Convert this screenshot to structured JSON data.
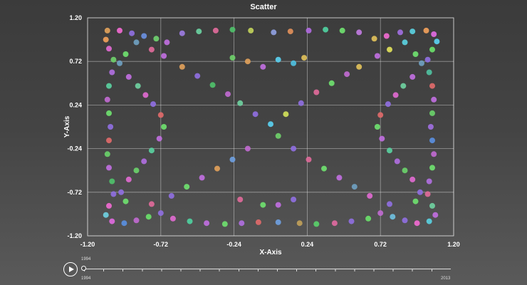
{
  "chart_data": {
    "type": "scatter",
    "title": "Scatter",
    "xlabel": "X-Axis",
    "ylabel": "Y-Axis",
    "xlim": [
      -1.2,
      1.2
    ],
    "ylim": [
      -1.2,
      1.2
    ],
    "xticks": [
      "-1.20",
      "-0.72",
      "-0.24",
      "0.24",
      "0.72",
      "1.20"
    ],
    "yticks": [
      "1.20",
      "0.72",
      "0.24",
      "-0.24",
      "-0.72",
      "-1.20"
    ],
    "grid": true,
    "curve": "x = sin(t)·(1 + 0.32·cos(2t)^2), y = cos(t)·(1 + 0.32·sin(2t)^2) outer loop plus x = y = ±0.92·sin(t)·|sin(t)| diagonals",
    "points": [
      {
        "x": -1.07,
        "y": 1.06,
        "color": "#e0a15a"
      },
      {
        "x": -0.99,
        "y": 1.06,
        "color": "#f06ad0"
      },
      {
        "x": -0.91,
        "y": 1.03,
        "color": "#8e6fe0"
      },
      {
        "x": -0.83,
        "y": 1.0,
        "color": "#6a8fe0"
      },
      {
        "x": -0.75,
        "y": 0.97,
        "color": "#6fd06f"
      },
      {
        "x": -0.68,
        "y": 0.93,
        "color": "#c06fe0"
      },
      {
        "x": -0.58,
        "y": 1.03,
        "color": "#9b7be0"
      },
      {
        "x": -0.47,
        "y": 1.05,
        "color": "#6ad0a0"
      },
      {
        "x": -0.36,
        "y": 1.06,
        "color": "#e06a9a"
      },
      {
        "x": -0.25,
        "y": 1.07,
        "color": "#4fc06a"
      },
      {
        "x": -0.13,
        "y": 1.06,
        "color": "#c0d05a"
      },
      {
        "x": 0.02,
        "y": 1.04,
        "color": "#8fa0e0"
      },
      {
        "x": 0.13,
        "y": 1.05,
        "color": "#e08f5a"
      },
      {
        "x": 0.25,
        "y": 1.06,
        "color": "#b06ae0"
      },
      {
        "x": 0.36,
        "y": 1.07,
        "color": "#4fd0a0"
      },
      {
        "x": 0.47,
        "y": 1.06,
        "color": "#6fe06f"
      },
      {
        "x": 0.58,
        "y": 1.04,
        "color": "#c07be0"
      },
      {
        "x": 0.68,
        "y": 0.97,
        "color": "#e0c05a"
      },
      {
        "x": 0.76,
        "y": 1.0,
        "color": "#f06ad0"
      },
      {
        "x": 0.85,
        "y": 1.04,
        "color": "#a06fe0"
      },
      {
        "x": 0.93,
        "y": 1.05,
        "color": "#5ad0e0"
      },
      {
        "x": 1.02,
        "y": 1.06,
        "color": "#f0a05a"
      },
      {
        "x": 1.07,
        "y": 1.02,
        "color": "#e06ae0"
      },
      {
        "x": 1.09,
        "y": 0.94,
        "color": "#5ad0f0"
      },
      {
        "x": 1.06,
        "y": 0.85,
        "color": "#6ae06a"
      },
      {
        "x": 1.03,
        "y": 0.74,
        "color": "#8f6fe0"
      },
      {
        "x": 1.04,
        "y": 0.6,
        "color": "#4fc0a0"
      },
      {
        "x": 1.06,
        "y": 0.45,
        "color": "#e06a6a"
      },
      {
        "x": 1.07,
        "y": 0.3,
        "color": "#c06fe0"
      },
      {
        "x": 1.06,
        "y": 0.15,
        "color": "#6ad06a"
      },
      {
        "x": 1.05,
        "y": 0.0,
        "color": "#a06fe0"
      },
      {
        "x": 1.06,
        "y": -0.15,
        "color": "#5a8fe0"
      },
      {
        "x": 1.07,
        "y": -0.3,
        "color": "#c06ad0"
      },
      {
        "x": 1.06,
        "y": -0.45,
        "color": "#6fe06f"
      },
      {
        "x": 1.04,
        "y": -0.6,
        "color": "#b06fe0"
      },
      {
        "x": 1.03,
        "y": -0.74,
        "color": "#e06a9a"
      },
      {
        "x": 1.06,
        "y": -0.87,
        "color": "#6fd0a0"
      },
      {
        "x": 1.08,
        "y": -0.97,
        "color": "#c06fe0"
      },
      {
        "x": 1.04,
        "y": -1.04,
        "color": "#5ad0e0"
      },
      {
        "x": 0.96,
        "y": -1.06,
        "color": "#f06ad0"
      },
      {
        "x": 0.88,
        "y": -1.03,
        "color": "#8f6fe0"
      },
      {
        "x": 0.8,
        "y": -0.99,
        "color": "#6fc0e0"
      },
      {
        "x": 0.72,
        "y": -0.95,
        "color": "#c06ad0"
      },
      {
        "x": 0.64,
        "y": -1.01,
        "color": "#6ae06a"
      },
      {
        "x": 0.53,
        "y": -1.04,
        "color": "#8f6fe0"
      },
      {
        "x": 0.42,
        "y": -1.06,
        "color": "#e06aa0"
      },
      {
        "x": 0.3,
        "y": -1.07,
        "color": "#5ad06a"
      },
      {
        "x": 0.19,
        "y": -1.06,
        "color": "#c0a05a"
      },
      {
        "x": 0.05,
        "y": -1.05,
        "color": "#6fa0e0"
      },
      {
        "x": -0.08,
        "y": -1.05,
        "color": "#e06a6a"
      },
      {
        "x": -0.19,
        "y": -1.06,
        "color": "#b06fe0"
      },
      {
        "x": -0.3,
        "y": -1.07,
        "color": "#6fe06f"
      },
      {
        "x": -0.42,
        "y": -1.06,
        "color": "#c06fe0"
      },
      {
        "x": -0.53,
        "y": -1.04,
        "color": "#4fd0a0"
      },
      {
        "x": -0.64,
        "y": -1.01,
        "color": "#e06ad0"
      },
      {
        "x": -0.72,
        "y": -0.95,
        "color": "#8f6fe0"
      },
      {
        "x": -0.8,
        "y": -0.99,
        "color": "#6ae06a"
      },
      {
        "x": -0.88,
        "y": -1.03,
        "color": "#c06ad0"
      },
      {
        "x": -0.96,
        "y": -1.06,
        "color": "#5a8fe0"
      },
      {
        "x": -1.04,
        "y": -1.04,
        "color": "#e06ae0"
      },
      {
        "x": -1.08,
        "y": -0.97,
        "color": "#6fd0e0"
      },
      {
        "x": -1.06,
        "y": -0.87,
        "color": "#f06ad0"
      },
      {
        "x": -1.03,
        "y": -0.74,
        "color": "#8f6fe0"
      },
      {
        "x": -1.04,
        "y": -0.6,
        "color": "#4fc06a"
      },
      {
        "x": -1.06,
        "y": -0.45,
        "color": "#c06fe0"
      },
      {
        "x": -1.07,
        "y": -0.3,
        "color": "#6ad06a"
      },
      {
        "x": -1.06,
        "y": -0.15,
        "color": "#e06a6a"
      },
      {
        "x": -1.05,
        "y": 0.0,
        "color": "#8f6fe0"
      },
      {
        "x": -1.06,
        "y": 0.15,
        "color": "#6fe06f"
      },
      {
        "x": -1.07,
        "y": 0.3,
        "color": "#c06ad0"
      },
      {
        "x": -1.06,
        "y": 0.45,
        "color": "#5ad0a0"
      },
      {
        "x": -1.04,
        "y": 0.6,
        "color": "#b06fe0"
      },
      {
        "x": -1.03,
        "y": 0.74,
        "color": "#6fd06a"
      },
      {
        "x": -1.06,
        "y": 0.86,
        "color": "#e06ad0"
      },
      {
        "x": -1.08,
        "y": 0.96,
        "color": "#f0a05a"
      },
      {
        "x": -0.95,
        "y": 0.8,
        "color": "#6fe06f"
      },
      {
        "x": -0.99,
        "y": 0.7,
        "color": "#6fa0c0"
      },
      {
        "x": -0.93,
        "y": 0.55,
        "color": "#c06fe0"
      },
      {
        "x": -0.87,
        "y": 0.45,
        "color": "#6fd0a0"
      },
      {
        "x": -0.82,
        "y": 0.35,
        "color": "#e06ad0"
      },
      {
        "x": -0.77,
        "y": 0.25,
        "color": "#8f6fe0"
      },
      {
        "x": -0.72,
        "y": 0.13,
        "color": "#e06a6a"
      },
      {
        "x": -0.7,
        "y": 0.0,
        "color": "#6fe06f"
      },
      {
        "x": -0.73,
        "y": -0.13,
        "color": "#c06fe0"
      },
      {
        "x": -0.78,
        "y": -0.26,
        "color": "#5ad0a0"
      },
      {
        "x": -0.83,
        "y": -0.38,
        "color": "#b06fe0"
      },
      {
        "x": -0.88,
        "y": -0.48,
        "color": "#6ad06a"
      },
      {
        "x": -0.93,
        "y": -0.58,
        "color": "#e06ad0"
      },
      {
        "x": -0.98,
        "y": -0.72,
        "color": "#8f6fe0"
      },
      {
        "x": -0.95,
        "y": -0.82,
        "color": "#6fe06f"
      },
      {
        "x": 0.95,
        "y": 0.8,
        "color": "#6fe06f"
      },
      {
        "x": 0.99,
        "y": 0.7,
        "color": "#6fa0c0"
      },
      {
        "x": 0.93,
        "y": 0.55,
        "color": "#c06fe0"
      },
      {
        "x": 0.87,
        "y": 0.45,
        "color": "#6fd0a0"
      },
      {
        "x": 0.82,
        "y": 0.35,
        "color": "#e06ad0"
      },
      {
        "x": 0.77,
        "y": 0.25,
        "color": "#8f6fe0"
      },
      {
        "x": 0.72,
        "y": 0.13,
        "color": "#e06a6a"
      },
      {
        "x": 0.7,
        "y": 0.0,
        "color": "#6fe06f"
      },
      {
        "x": 0.73,
        "y": -0.13,
        "color": "#c06fe0"
      },
      {
        "x": 0.78,
        "y": -0.26,
        "color": "#5ad0a0"
      },
      {
        "x": 0.83,
        "y": -0.38,
        "color": "#b06fe0"
      },
      {
        "x": 0.88,
        "y": -0.48,
        "color": "#6ad06a"
      },
      {
        "x": 0.93,
        "y": -0.58,
        "color": "#e06ad0"
      },
      {
        "x": 0.98,
        "y": -0.72,
        "color": "#8f6fe0"
      },
      {
        "x": 0.95,
        "y": -0.82,
        "color": "#6fe06f"
      },
      {
        "x": -0.88,
        "y": 0.93,
        "color": "#6fa0c0"
      },
      {
        "x": -0.78,
        "y": 0.85,
        "color": "#e06a9a"
      },
      {
        "x": -0.7,
        "y": 0.78,
        "color": "#c06fe0"
      },
      {
        "x": -0.58,
        "y": 0.66,
        "color": "#e0a05a"
      },
      {
        "x": -0.48,
        "y": 0.56,
        "color": "#8f6fe0"
      },
      {
        "x": -0.38,
        "y": 0.46,
        "color": "#4fc06a"
      },
      {
        "x": -0.28,
        "y": 0.36,
        "color": "#c06ad0"
      },
      {
        "x": -0.2,
        "y": 0.26,
        "color": "#6fd0a0"
      },
      {
        "x": -0.1,
        "y": 0.14,
        "color": "#8f6fe0"
      },
      {
        "x": 0.0,
        "y": 0.03,
        "color": "#5ad0f0"
      },
      {
        "x": 0.1,
        "y": 0.14,
        "color": "#d0e05a"
      },
      {
        "x": 0.2,
        "y": 0.26,
        "color": "#8f6fe0"
      },
      {
        "x": 0.3,
        "y": 0.38,
        "color": "#e06a9a"
      },
      {
        "x": 0.4,
        "y": 0.48,
        "color": "#6fe06f"
      },
      {
        "x": 0.5,
        "y": 0.58,
        "color": "#c06ad0"
      },
      {
        "x": 0.58,
        "y": 0.66,
        "color": "#e0c05a"
      },
      {
        "x": 0.7,
        "y": 0.78,
        "color": "#c06fe0"
      },
      {
        "x": 0.78,
        "y": 0.85,
        "color": "#e0e05a"
      },
      {
        "x": 0.88,
        "y": 0.93,
        "color": "#5ad0e0"
      },
      {
        "x": -0.78,
        "y": -0.85,
        "color": "#e06a9a"
      },
      {
        "x": -0.65,
        "y": -0.76,
        "color": "#8f6fe0"
      },
      {
        "x": -0.55,
        "y": -0.66,
        "color": "#6fe06f"
      },
      {
        "x": -0.45,
        "y": -0.56,
        "color": "#c06fe0"
      },
      {
        "x": -0.35,
        "y": -0.46,
        "color": "#e0a05a"
      },
      {
        "x": -0.25,
        "y": -0.36,
        "color": "#6fa0e0"
      },
      {
        "x": -0.15,
        "y": -0.24,
        "color": "#c06ad0"
      },
      {
        "x": 0.05,
        "y": -0.1,
        "color": "#6fd06a"
      },
      {
        "x": 0.15,
        "y": -0.24,
        "color": "#8f6fe0"
      },
      {
        "x": 0.25,
        "y": -0.36,
        "color": "#e06a9a"
      },
      {
        "x": 0.35,
        "y": -0.46,
        "color": "#6fe06f"
      },
      {
        "x": 0.45,
        "y": -0.56,
        "color": "#c06fe0"
      },
      {
        "x": 0.55,
        "y": -0.66,
        "color": "#6fa0c0"
      },
      {
        "x": 0.65,
        "y": -0.76,
        "color": "#e06ad0"
      },
      {
        "x": 0.78,
        "y": -0.85,
        "color": "#8f6fe0"
      },
      {
        "x": -0.05,
        "y": 0.66,
        "color": "#c06fe0"
      },
      {
        "x": 0.05,
        "y": 0.74,
        "color": "#5ad0f0"
      },
      {
        "x": -0.15,
        "y": 0.72,
        "color": "#e0a05a"
      },
      {
        "x": -0.25,
        "y": 0.76,
        "color": "#6fd06a"
      },
      {
        "x": 0.15,
        "y": 0.7,
        "color": "#4fc0e0"
      },
      {
        "x": 0.22,
        "y": 0.76,
        "color": "#e0c05a"
      },
      {
        "x": -0.2,
        "y": -0.8,
        "color": "#e06a9a"
      },
      {
        "x": -0.05,
        "y": -0.86,
        "color": "#6fe06f"
      },
      {
        "x": 0.05,
        "y": -0.86,
        "color": "#c06fe0"
      },
      {
        "x": 0.15,
        "y": -0.8,
        "color": "#8f6fe0"
      }
    ]
  },
  "player": {
    "current_year": "1994",
    "min_year": "1994",
    "max_year": "2013"
  }
}
